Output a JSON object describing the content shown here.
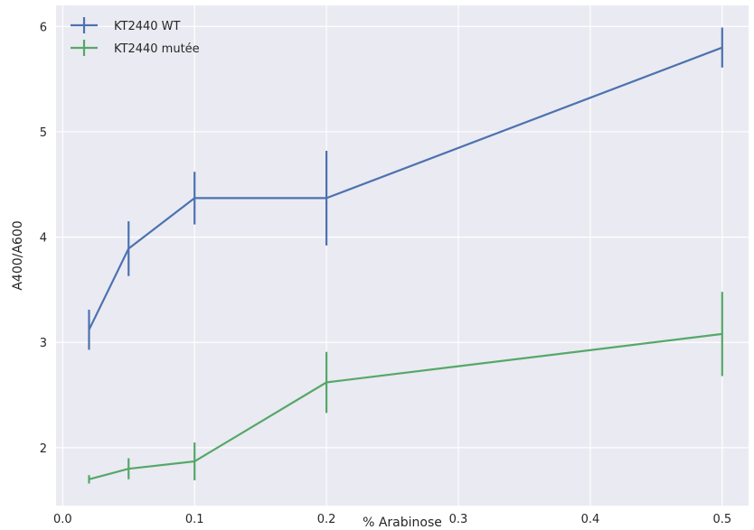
{
  "chart_data": {
    "type": "line",
    "title": "",
    "xlabel": "% Arabinose",
    "ylabel": "A400/A600",
    "xlim": [
      -0.005,
      0.52
    ],
    "ylim": [
      1.45,
      6.2
    ],
    "xticks": [
      0.0,
      0.1,
      0.2,
      0.3,
      0.4,
      0.5
    ],
    "xtick_labels": [
      "0.0",
      "0.1",
      "0.2",
      "0.3",
      "0.4",
      "0.5"
    ],
    "yticks": [
      2,
      3,
      4,
      5,
      6
    ],
    "ytick_labels": [
      "2",
      "3",
      "4",
      "5",
      "6"
    ],
    "grid": true,
    "legend_position": "top-left",
    "background": "#eaeaf2",
    "series": [
      {
        "name": "KT2440 WT",
        "color": "#4c72b0",
        "x": [
          0.02,
          0.05,
          0.1,
          0.2,
          0.5
        ],
        "y": [
          3.12,
          3.89,
          4.37,
          4.37,
          5.8
        ],
        "yerr": [
          0.19,
          0.26,
          0.25,
          0.45,
          0.19
        ]
      },
      {
        "name": "KT2440 mutée",
        "color": "#55a868",
        "x": [
          0.02,
          0.05,
          0.1,
          0.2,
          0.5
        ],
        "y": [
          1.7,
          1.8,
          1.87,
          2.62,
          3.08
        ],
        "yerr": [
          0.04,
          0.1,
          0.18,
          0.29,
          0.4
        ]
      }
    ]
  }
}
